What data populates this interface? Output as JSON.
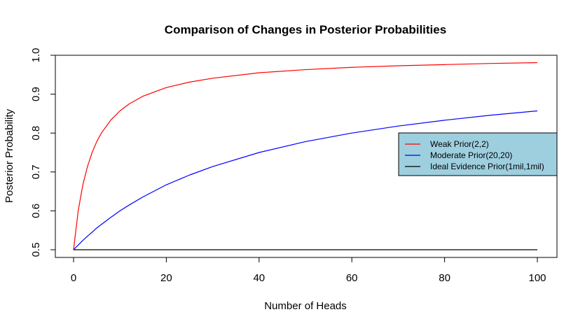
{
  "chart_data": {
    "type": "line",
    "title": "Comparison of Changes in Posterior Probabilities",
    "xlabel": "Number of Heads",
    "ylabel": "Posterior Probability",
    "xlim": [
      0,
      100
    ],
    "ylim": [
      0.5,
      1.0
    ],
    "x_ticks": [
      0,
      20,
      40,
      60,
      80,
      100
    ],
    "y_ticks": [
      0.5,
      0.6,
      0.7,
      0.8,
      0.9,
      1.0
    ],
    "x_tick_labels": [
      "0",
      "20",
      "40",
      "60",
      "80",
      "100"
    ],
    "y_tick_labels": [
      "0.5",
      "0.6",
      "0.7",
      "0.8",
      "0.9",
      "1.0"
    ],
    "grid": false,
    "legend_position": "right",
    "legend_background": "#9ecfdf",
    "x": [
      0,
      1,
      2,
      3,
      4,
      5,
      6,
      8,
      10,
      12,
      15,
      20,
      25,
      30,
      40,
      50,
      60,
      70,
      80,
      90,
      100
    ],
    "series": [
      {
        "name": "Weak Prior(2,2)",
        "color": "#ff0000",
        "values": [
          0.5,
          0.6,
          0.667,
          0.714,
          0.75,
          0.778,
          0.8,
          0.833,
          0.857,
          0.875,
          0.895,
          0.917,
          0.931,
          0.941,
          0.955,
          0.963,
          0.969,
          0.973,
          0.976,
          0.979,
          0.981
        ]
      },
      {
        "name": "Moderate Prior(20,20)",
        "color": "#0000ff",
        "values": [
          0.5,
          0.512,
          0.524,
          0.535,
          0.545,
          0.556,
          0.565,
          0.583,
          0.6,
          0.615,
          0.636,
          0.667,
          0.692,
          0.714,
          0.75,
          0.778,
          0.8,
          0.818,
          0.833,
          0.846,
          0.857
        ]
      },
      {
        "name": "Ideal Evidence Prior(1mil,1mil)",
        "color": "#000000",
        "values": [
          0.5,
          0.5,
          0.5,
          0.5,
          0.5,
          0.5,
          0.5,
          0.5,
          0.5,
          0.5,
          0.5,
          0.5,
          0.5,
          0.5,
          0.5,
          0.5,
          0.5,
          0.5,
          0.5,
          0.5,
          0.5
        ]
      }
    ]
  }
}
